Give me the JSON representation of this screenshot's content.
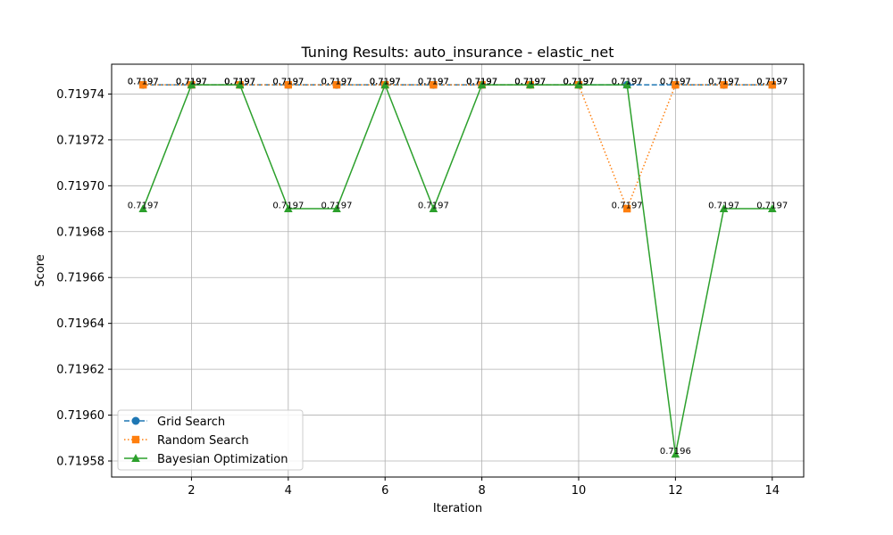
{
  "chart_data": {
    "type": "line",
    "title": "Tuning Results: auto_insurance - elastic_net",
    "xlabel": "Iteration",
    "ylabel": "Score",
    "xlim": [
      0.35,
      14.65
    ],
    "ylim": [
      0.719573,
      0.719753
    ],
    "x_ticks": [
      2,
      4,
      6,
      8,
      10,
      12,
      14
    ],
    "y_ticks": [
      0.71958,
      0.7196,
      0.71962,
      0.71964,
      0.71966,
      0.71968,
      0.7197,
      0.71972,
      0.71974
    ],
    "y_tick_labels": [
      "0.71958",
      "0.71960",
      "0.71962",
      "0.71964",
      "0.71966",
      "0.71968",
      "0.71970",
      "0.71972",
      "0.71974"
    ],
    "grid": true,
    "legend_position": "lower-left",
    "x": [
      1,
      2,
      3,
      4,
      5,
      6,
      7,
      8,
      9,
      10,
      11,
      12,
      13,
      14
    ],
    "series": [
      {
        "name": "Grid Search",
        "color": "#1f77b4",
        "dash": "dashed",
        "marker": "circle",
        "values": [
          0.719744,
          0.719744,
          0.719744,
          0.719744,
          0.719744,
          0.719744,
          0.719744,
          0.719744,
          0.719744,
          0.719744,
          0.719744,
          0.719744,
          0.719744,
          0.719744
        ],
        "labels": [
          "0.7197",
          "0.7197",
          "0.7197",
          "0.7197",
          "0.7197",
          "0.7197",
          "0.7197",
          "0.7197",
          "0.7197",
          "0.7197",
          "0.7197",
          "0.7197",
          "0.7197",
          "0.7197"
        ]
      },
      {
        "name": "Random Search",
        "color": "#ff7f0e",
        "dash": "dotted",
        "marker": "square",
        "values": [
          0.719744,
          0.719744,
          0.719744,
          0.719744,
          0.719744,
          0.719744,
          0.719744,
          0.719744,
          0.719744,
          0.719744,
          0.71969,
          0.719744,
          0.719744,
          0.719744
        ],
        "labels": [
          "0.7197",
          "0.7197",
          "0.7197",
          "0.7197",
          "0.7197",
          "0.7197",
          "0.7197",
          "0.7197",
          "0.7197",
          "0.7197",
          "0.7197",
          "0.7197",
          "0.7197",
          "0.7197"
        ]
      },
      {
        "name": "Bayesian Optimization",
        "color": "#2ca02c",
        "dash": "solid",
        "marker": "triangle",
        "values": [
          0.71969,
          0.719744,
          0.719744,
          0.71969,
          0.71969,
          0.719744,
          0.71969,
          0.719744,
          0.719744,
          0.719744,
          0.719744,
          0.719583,
          0.71969,
          0.71969
        ],
        "labels": [
          "0.7197",
          "0.7197",
          "0.7197",
          "0.7197",
          "0.7197",
          "0.7197",
          "0.7197",
          "0.7197",
          "0.7197",
          "0.7197",
          "0.7197",
          "0.7196",
          "0.7197",
          "0.7197"
        ]
      }
    ]
  }
}
